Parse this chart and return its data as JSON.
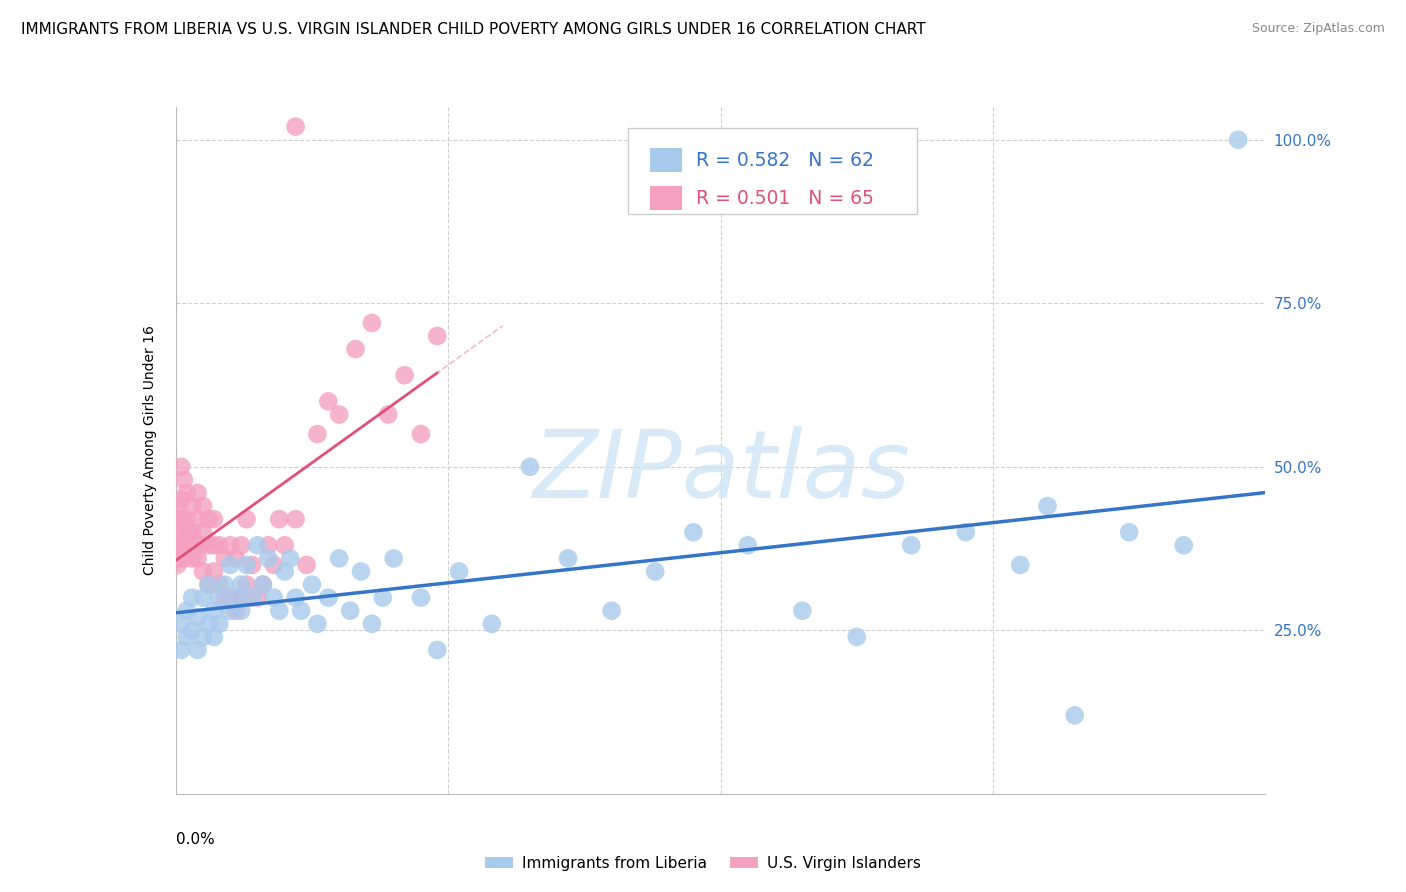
{
  "title": "IMMIGRANTS FROM LIBERIA VS U.S. VIRGIN ISLANDER CHILD POVERTY AMONG GIRLS UNDER 16 CORRELATION CHART",
  "source": "Source: ZipAtlas.com",
  "ylabel": "Child Poverty Among Girls Under 16",
  "xmin": 0.0,
  "xmax": 0.2,
  "ymin": 0.0,
  "ymax": 1.05,
  "yticks": [
    0.25,
    0.5,
    0.75,
    1.0
  ],
  "watermark": "ZIPatlas",
  "series1_label": "Immigrants from Liberia",
  "series1_color": "#a8caec",
  "series1_line_color": "#3575c8",
  "series1_R": "0.582",
  "series1_N": "62",
  "series2_label": "U.S. Virgin Islanders",
  "series2_color": "#f4a0c0",
  "series2_line_color": "#e0507a",
  "series2_R": "0.501",
  "series2_N": "65",
  "grid_color": "#d0d0d0",
  "background_color": "#ffffff",
  "title_fontsize": 11,
  "blue_scatter_x": [
    0.001,
    0.001,
    0.002,
    0.002,
    0.003,
    0.003,
    0.004,
    0.004,
    0.005,
    0.005,
    0.006,
    0.006,
    0.007,
    0.007,
    0.008,
    0.008,
    0.009,
    0.01,
    0.01,
    0.011,
    0.012,
    0.012,
    0.013,
    0.014,
    0.015,
    0.016,
    0.017,
    0.018,
    0.019,
    0.02,
    0.021,
    0.022,
    0.023,
    0.025,
    0.026,
    0.028,
    0.03,
    0.032,
    0.034,
    0.036,
    0.038,
    0.04,
    0.045,
    0.048,
    0.052,
    0.058,
    0.065,
    0.072,
    0.08,
    0.088,
    0.095,
    0.105,
    0.115,
    0.125,
    0.135,
    0.145,
    0.155,
    0.165,
    0.175,
    0.185,
    0.16,
    0.195
  ],
  "blue_scatter_y": [
    0.22,
    0.26,
    0.24,
    0.28,
    0.25,
    0.3,
    0.27,
    0.22,
    0.3,
    0.24,
    0.26,
    0.32,
    0.28,
    0.24,
    0.3,
    0.26,
    0.32,
    0.28,
    0.35,
    0.3,
    0.32,
    0.28,
    0.35,
    0.3,
    0.38,
    0.32,
    0.36,
    0.3,
    0.28,
    0.34,
    0.36,
    0.3,
    0.28,
    0.32,
    0.26,
    0.3,
    0.36,
    0.28,
    0.34,
    0.26,
    0.3,
    0.36,
    0.3,
    0.22,
    0.34,
    0.26,
    0.5,
    0.36,
    0.28,
    0.34,
    0.4,
    0.38,
    0.28,
    0.24,
    0.38,
    0.4,
    0.35,
    0.12,
    0.4,
    0.38,
    0.44,
    1.0
  ],
  "pink_scatter_x": [
    0.0003,
    0.0004,
    0.0005,
    0.0006,
    0.0007,
    0.0008,
    0.001,
    0.001,
    0.001,
    0.0012,
    0.0013,
    0.0015,
    0.0015,
    0.002,
    0.002,
    0.002,
    0.0025,
    0.003,
    0.003,
    0.003,
    0.0035,
    0.004,
    0.004,
    0.004,
    0.0045,
    0.005,
    0.005,
    0.005,
    0.006,
    0.006,
    0.006,
    0.007,
    0.007,
    0.007,
    0.008,
    0.008,
    0.009,
    0.009,
    0.01,
    0.01,
    0.011,
    0.011,
    0.012,
    0.012,
    0.013,
    0.013,
    0.014,
    0.015,
    0.016,
    0.017,
    0.018,
    0.019,
    0.02,
    0.022,
    0.024,
    0.026,
    0.028,
    0.03,
    0.033,
    0.036,
    0.039,
    0.042,
    0.045,
    0.048,
    0.022
  ],
  "pink_scatter_y": [
    0.35,
    0.4,
    0.38,
    0.44,
    0.36,
    0.42,
    0.38,
    0.45,
    0.5,
    0.4,
    0.42,
    0.36,
    0.48,
    0.38,
    0.42,
    0.46,
    0.4,
    0.36,
    0.4,
    0.44,
    0.38,
    0.36,
    0.42,
    0.46,
    0.38,
    0.34,
    0.4,
    0.44,
    0.32,
    0.38,
    0.42,
    0.34,
    0.38,
    0.42,
    0.32,
    0.38,
    0.3,
    0.36,
    0.3,
    0.38,
    0.28,
    0.36,
    0.3,
    0.38,
    0.32,
    0.42,
    0.35,
    0.3,
    0.32,
    0.38,
    0.35,
    0.42,
    0.38,
    0.42,
    0.35,
    0.55,
    0.6,
    0.58,
    0.68,
    0.72,
    0.58,
    0.64,
    0.55,
    0.7,
    1.02
  ],
  "blue_trendline_x0": 0.0,
  "blue_trendline_x1": 0.2,
  "pink_trendline_x0": 0.0,
  "pink_trendline_x1": 0.048
}
